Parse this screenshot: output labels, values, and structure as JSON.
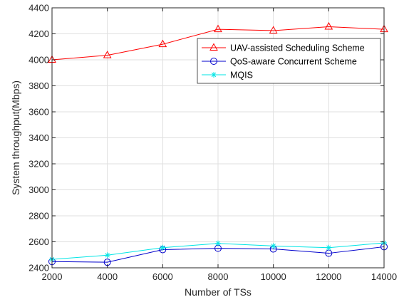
{
  "chart_data": {
    "type": "line",
    "x": [
      2000,
      4000,
      6000,
      8000,
      10000,
      12000,
      14000
    ],
    "xlabel": "Number of TSs",
    "ylabel": "System throughput(Mbps)",
    "xlim": [
      2000,
      14000
    ],
    "ylim": [
      2400,
      4400
    ],
    "xticks": [
      "2000",
      "4000",
      "6000",
      "8000",
      "10000",
      "12000",
      "14000"
    ],
    "yticks": [
      "2400",
      "2600",
      "2800",
      "3000",
      "3200",
      "3400",
      "3600",
      "3800",
      "4000",
      "4200",
      "4400"
    ],
    "grid": true,
    "legend_position": "top-right",
    "series": [
      {
        "name": "UAV-assisted Scheduling Scheme",
        "color": "#ff0000",
        "marker": "triangle",
        "values": [
          4000,
          4035,
          4120,
          4235,
          4225,
          4255,
          4235
        ]
      },
      {
        "name": "QoS-aware Concurrent Scheme",
        "color": "#0000cc",
        "marker": "circle",
        "values": [
          2448,
          2443,
          2540,
          2550,
          2545,
          2512,
          2562
        ]
      },
      {
        "name": "MQIS",
        "color": "#00e5e5",
        "marker": "asterisk",
        "values": [
          2465,
          2497,
          2555,
          2588,
          2568,
          2555,
          2592
        ]
      }
    ]
  }
}
